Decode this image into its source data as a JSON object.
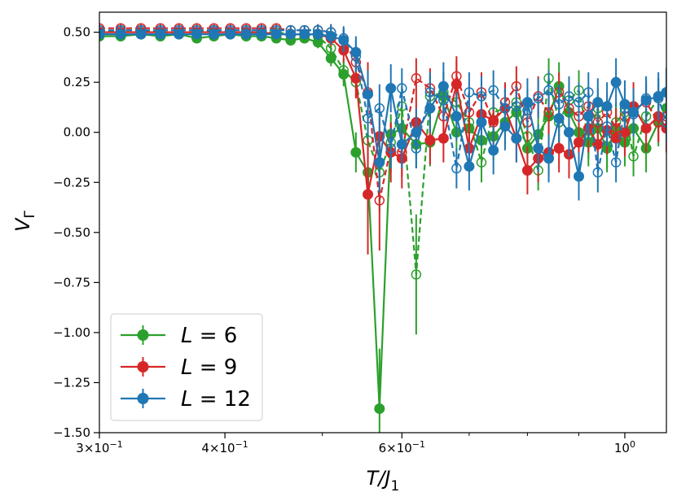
{
  "chart_data": {
    "type": "line",
    "x_scale": "log",
    "xlim": [
      0.3,
      1.1
    ],
    "ylim": [
      -1.5,
      0.6
    ],
    "xlabel": "T/J",
    "xlabel_sub": "1",
    "ylabel": "V",
    "ylabel_sub": "Γ",
    "x_ticks": [
      {
        "value": 0.3,
        "mantissa": "3×10",
        "exponent": "−1"
      },
      {
        "value": 0.4,
        "mantissa": "4×10",
        "exponent": "−1"
      },
      {
        "value": 0.6,
        "mantissa": "6×10",
        "exponent": "−1"
      },
      {
        "value": 1.0,
        "mantissa": "10",
        "exponent": "0"
      }
    ],
    "x_minor_ticks": [
      0.5,
      0.7,
      0.8,
      0.9
    ],
    "y_ticks": [
      {
        "value": 0.5,
        "label": "0.50"
      },
      {
        "value": 0.25,
        "label": "0.25"
      },
      {
        "value": 0.0,
        "label": "0.00"
      },
      {
        "value": -0.25,
        "label": "−0.25"
      },
      {
        "value": -0.5,
        "label": "−0.50"
      },
      {
        "value": -0.75,
        "label": "−0.75"
      },
      {
        "value": -1.0,
        "label": "−1.00"
      },
      {
        "value": -1.25,
        "label": "−1.25"
      },
      {
        "value": -1.5,
        "label": "−1.50"
      }
    ],
    "legend": {
      "position": "lower-left",
      "entries": [
        {
          "prefix": "L",
          "eq": "= 6",
          "color": "#2ca02c"
        },
        {
          "prefix": "L",
          "eq": "= 9",
          "color": "#d62728"
        },
        {
          "prefix": "L",
          "eq": "= 12",
          "color": "#1f77b4"
        }
      ]
    },
    "series": [
      {
        "name": "L = 6",
        "color": "#2ca02c",
        "style": "solid",
        "marker": "filled",
        "x": [
          0.3,
          0.315,
          0.33,
          0.345,
          0.36,
          0.375,
          0.39,
          0.405,
          0.42,
          0.435,
          0.45,
          0.465,
          0.48,
          0.495,
          0.51,
          0.525,
          0.54,
          0.555,
          0.57,
          0.585,
          0.6,
          0.62,
          0.64,
          0.66,
          0.68,
          0.7,
          0.72,
          0.74,
          0.76,
          0.78,
          0.8,
          0.82,
          0.84,
          0.86,
          0.88,
          0.9,
          0.92,
          0.94,
          0.96,
          0.98,
          1.0,
          1.02,
          1.05,
          1.08,
          1.1
        ],
        "y": [
          0.48,
          0.48,
          0.49,
          0.48,
          0.49,
          0.47,
          0.48,
          0.49,
          0.48,
          0.48,
          0.47,
          0.46,
          0.47,
          0.45,
          0.37,
          0.29,
          -0.1,
          -0.2,
          -1.38,
          -0.01,
          0.02,
          -0.06,
          -0.05,
          0.18,
          0.0,
          0.02,
          -0.04,
          -0.02,
          0.05,
          0.1,
          -0.08,
          -0.01,
          0.08,
          0.23,
          0.1,
          0.0,
          -0.05,
          0.02,
          -0.08,
          0.01,
          -0.05,
          0.02,
          -0.08,
          0.05,
          0.12
        ],
        "err": [
          0.02,
          0.02,
          0.02,
          0.02,
          0.02,
          0.02,
          0.02,
          0.02,
          0.02,
          0.02,
          0.02,
          0.02,
          0.02,
          0.03,
          0.04,
          0.06,
          0.1,
          0.15,
          0.3,
          0.1,
          0.12,
          0.12,
          0.12,
          0.12,
          0.12,
          0.12,
          0.12,
          0.12,
          0.12,
          0.12,
          0.12,
          0.12,
          0.12,
          0.12,
          0.12,
          0.12,
          0.12,
          0.12,
          0.12,
          0.12,
          0.12,
          0.12,
          0.12,
          0.12,
          0.12
        ]
      },
      {
        "name": "L = 6 (open)",
        "color": "#2ca02c",
        "style": "dashed",
        "marker": "open",
        "x": [
          0.3,
          0.315,
          0.33,
          0.345,
          0.36,
          0.375,
          0.39,
          0.405,
          0.42,
          0.435,
          0.45,
          0.465,
          0.48,
          0.495,
          0.51,
          0.525,
          0.54,
          0.555,
          0.57,
          0.585,
          0.6,
          0.62,
          0.64,
          0.66,
          0.68,
          0.7,
          0.72,
          0.74,
          0.76,
          0.78,
          0.8,
          0.82,
          0.84,
          0.86,
          0.88,
          0.9,
          0.92,
          0.94,
          0.96,
          0.98,
          1.0,
          1.02,
          1.05,
          1.08,
          1.1
        ],
        "y": [
          0.5,
          0.51,
          0.51,
          0.5,
          0.5,
          0.5,
          0.51,
          0.5,
          0.5,
          0.5,
          0.5,
          0.49,
          0.49,
          0.48,
          0.42,
          0.31,
          0.25,
          -0.04,
          -0.2,
          -0.05,
          0.13,
          -0.71,
          0.18,
          0.2,
          0.15,
          0.05,
          -0.15,
          0.1,
          0.12,
          0.15,
          -0.02,
          -0.19,
          0.27,
          0.05,
          0.16,
          0.21,
          -0.03,
          0.12,
          -0.08,
          0.05,
          0.1,
          -0.12,
          0.08,
          0.17,
          0.2
        ],
        "err": [
          0.02,
          0.02,
          0.02,
          0.02,
          0.02,
          0.02,
          0.02,
          0.02,
          0.02,
          0.02,
          0.02,
          0.02,
          0.02,
          0.03,
          0.04,
          0.06,
          0.08,
          0.12,
          0.2,
          0.1,
          0.1,
          0.3,
          0.1,
          0.1,
          0.1,
          0.1,
          0.1,
          0.1,
          0.1,
          0.1,
          0.1,
          0.1,
          0.1,
          0.1,
          0.1,
          0.1,
          0.1,
          0.1,
          0.1,
          0.1,
          0.1,
          0.1,
          0.1,
          0.1,
          0.1
        ]
      },
      {
        "name": "L = 9",
        "color": "#d62728",
        "style": "solid",
        "marker": "filled",
        "x": [
          0.3,
          0.315,
          0.33,
          0.345,
          0.36,
          0.375,
          0.39,
          0.405,
          0.42,
          0.435,
          0.45,
          0.465,
          0.48,
          0.495,
          0.51,
          0.525,
          0.54,
          0.555,
          0.57,
          0.585,
          0.6,
          0.62,
          0.64,
          0.66,
          0.68,
          0.7,
          0.72,
          0.74,
          0.76,
          0.78,
          0.8,
          0.82,
          0.84,
          0.86,
          0.88,
          0.9,
          0.92,
          0.94,
          0.96,
          0.98,
          1.0,
          1.02,
          1.05,
          1.08,
          1.1
        ],
        "y": [
          0.5,
          0.5,
          0.5,
          0.5,
          0.5,
          0.5,
          0.5,
          0.5,
          0.5,
          0.5,
          0.49,
          0.49,
          0.49,
          0.49,
          0.47,
          0.41,
          0.27,
          -0.31,
          -0.02,
          -0.1,
          -0.13,
          0.05,
          -0.04,
          -0.03,
          0.24,
          -0.08,
          0.09,
          0.06,
          0.12,
          -0.03,
          -0.19,
          -0.13,
          -0.1,
          -0.08,
          -0.11,
          -0.05,
          0.02,
          -0.06,
          0.01,
          -0.03,
          0.0,
          0.13,
          0.02,
          0.08,
          0.02
        ],
        "err": [
          0.02,
          0.02,
          0.02,
          0.02,
          0.02,
          0.02,
          0.02,
          0.02,
          0.02,
          0.02,
          0.02,
          0.02,
          0.02,
          0.03,
          0.04,
          0.06,
          0.1,
          0.3,
          0.15,
          0.15,
          0.15,
          0.12,
          0.12,
          0.12,
          0.12,
          0.12,
          0.12,
          0.12,
          0.12,
          0.12,
          0.12,
          0.12,
          0.12,
          0.12,
          0.12,
          0.12,
          0.12,
          0.12,
          0.12,
          0.12,
          0.12,
          0.12,
          0.12,
          0.12,
          0.12
        ]
      },
      {
        "name": "L = 9 (open)",
        "color": "#d62728",
        "style": "dashed",
        "marker": "open",
        "x": [
          0.3,
          0.315,
          0.33,
          0.345,
          0.36,
          0.375,
          0.39,
          0.405,
          0.42,
          0.435,
          0.45,
          0.465,
          0.48,
          0.495,
          0.51,
          0.525,
          0.54,
          0.555,
          0.57,
          0.585,
          0.6,
          0.62,
          0.64,
          0.66,
          0.68,
          0.7,
          0.72,
          0.74,
          0.76,
          0.78,
          0.8,
          0.82,
          0.84,
          0.86,
          0.88,
          0.9,
          0.92,
          0.94,
          0.96,
          0.98,
          1.0,
          1.02,
          1.05,
          1.08,
          1.1
        ],
        "y": [
          0.52,
          0.52,
          0.52,
          0.52,
          0.52,
          0.52,
          0.52,
          0.52,
          0.52,
          0.52,
          0.52,
          0.51,
          0.51,
          0.51,
          0.5,
          0.46,
          0.35,
          0.2,
          -0.34,
          -0.08,
          -0.1,
          0.27,
          0.22,
          0.08,
          0.28,
          0.1,
          0.2,
          0.05,
          0.15,
          0.23,
          0.05,
          0.18,
          0.1,
          0.2,
          0.12,
          0.08,
          0.13,
          0.05,
          0.1,
          0.02,
          0.08,
          0.12,
          0.15,
          0.05,
          0.08
        ],
        "err": [
          0.02,
          0.02,
          0.02,
          0.02,
          0.02,
          0.02,
          0.02,
          0.02,
          0.02,
          0.02,
          0.02,
          0.02,
          0.02,
          0.03,
          0.04,
          0.06,
          0.08,
          0.15,
          0.25,
          0.12,
          0.12,
          0.1,
          0.1,
          0.1,
          0.1,
          0.1,
          0.1,
          0.1,
          0.1,
          0.1,
          0.1,
          0.1,
          0.1,
          0.1,
          0.1,
          0.1,
          0.1,
          0.1,
          0.1,
          0.1,
          0.1,
          0.1,
          0.1,
          0.1,
          0.1
        ]
      },
      {
        "name": "L = 12",
        "color": "#1f77b4",
        "style": "solid",
        "marker": "filled",
        "x": [
          0.3,
          0.315,
          0.33,
          0.345,
          0.36,
          0.375,
          0.39,
          0.405,
          0.42,
          0.435,
          0.45,
          0.465,
          0.48,
          0.495,
          0.51,
          0.525,
          0.54,
          0.555,
          0.57,
          0.585,
          0.6,
          0.62,
          0.64,
          0.66,
          0.68,
          0.7,
          0.72,
          0.74,
          0.76,
          0.78,
          0.8,
          0.82,
          0.84,
          0.86,
          0.88,
          0.9,
          0.92,
          0.94,
          0.96,
          0.98,
          1.0,
          1.02,
          1.05,
          1.08,
          1.1
        ],
        "y": [
          0.49,
          0.49,
          0.49,
          0.49,
          0.49,
          0.49,
          0.49,
          0.49,
          0.49,
          0.49,
          0.49,
          0.49,
          0.49,
          0.49,
          0.48,
          0.46,
          0.4,
          0.19,
          -0.15,
          0.22,
          -0.06,
          0.0,
          0.12,
          0.23,
          0.08,
          -0.17,
          0.05,
          -0.09,
          0.03,
          -0.03,
          0.15,
          -0.08,
          -0.13,
          0.07,
          0.0,
          -0.22,
          0.08,
          0.15,
          0.13,
          0.25,
          0.14,
          0.1,
          0.16,
          0.18,
          0.2
        ],
        "err": [
          0.02,
          0.02,
          0.02,
          0.02,
          0.02,
          0.02,
          0.02,
          0.02,
          0.02,
          0.02,
          0.02,
          0.02,
          0.02,
          0.03,
          0.04,
          0.06,
          0.08,
          0.12,
          0.15,
          0.12,
          0.12,
          0.12,
          0.12,
          0.12,
          0.12,
          0.12,
          0.12,
          0.12,
          0.12,
          0.12,
          0.12,
          0.12,
          0.12,
          0.12,
          0.12,
          0.12,
          0.12,
          0.12,
          0.12,
          0.12,
          0.12,
          0.12,
          0.12,
          0.12,
          0.12
        ]
      },
      {
        "name": "L = 12 (open)",
        "color": "#1f77b4",
        "style": "dashed",
        "marker": "open",
        "x": [
          0.3,
          0.315,
          0.33,
          0.345,
          0.36,
          0.375,
          0.39,
          0.405,
          0.42,
          0.435,
          0.45,
          0.465,
          0.48,
          0.495,
          0.51,
          0.525,
          0.54,
          0.555,
          0.57,
          0.585,
          0.6,
          0.62,
          0.64,
          0.66,
          0.68,
          0.7,
          0.72,
          0.74,
          0.76,
          0.78,
          0.8,
          0.82,
          0.84,
          0.86,
          0.88,
          0.9,
          0.92,
          0.94,
          0.96,
          0.98,
          1.0,
          1.02,
          1.05,
          1.08,
          1.1
        ],
        "y": [
          0.51,
          0.51,
          0.51,
          0.51,
          0.51,
          0.51,
          0.51,
          0.51,
          0.51,
          0.51,
          0.51,
          0.51,
          0.51,
          0.51,
          0.5,
          0.47,
          0.38,
          0.07,
          0.12,
          -0.08,
          0.22,
          -0.08,
          0.2,
          0.16,
          -0.18,
          0.2,
          0.18,
          0.21,
          0.12,
          0.13,
          0.11,
          0.17,
          0.21,
          0.14,
          0.18,
          0.15,
          0.2,
          -0.2,
          0.03,
          -0.15,
          0.12,
          0.09,
          0.17,
          0.17,
          0.05
        ],
        "err": [
          0.02,
          0.02,
          0.02,
          0.02,
          0.02,
          0.02,
          0.02,
          0.02,
          0.02,
          0.02,
          0.02,
          0.02,
          0.02,
          0.03,
          0.04,
          0.06,
          0.08,
          0.1,
          0.12,
          0.1,
          0.1,
          0.1,
          0.1,
          0.1,
          0.1,
          0.1,
          0.1,
          0.1,
          0.1,
          0.1,
          0.1,
          0.1,
          0.1,
          0.1,
          0.1,
          0.1,
          0.1,
          0.1,
          0.1,
          0.1,
          0.1,
          0.1,
          0.1,
          0.1,
          0.1
        ]
      }
    ]
  }
}
